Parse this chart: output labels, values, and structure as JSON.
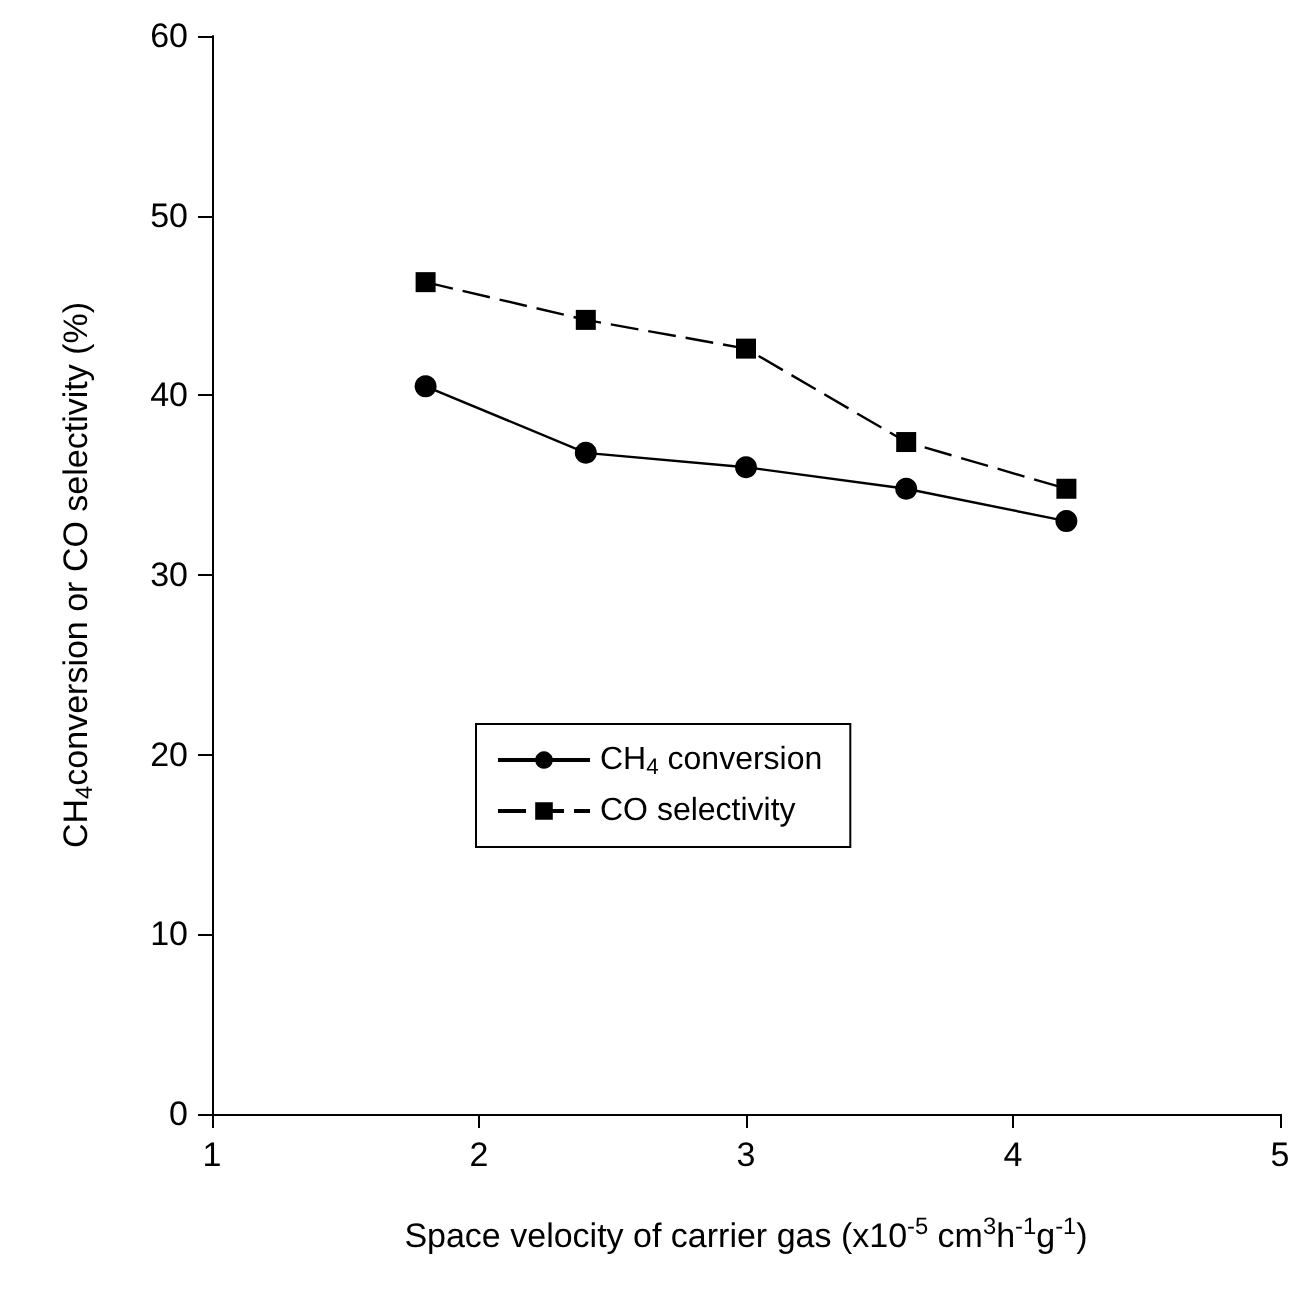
{
  "chart_data": {
    "type": "line",
    "xlabel": "Space velocity of carrier gas (x10$^{-5}$ cm$^{3}$h$^{-1}$g$^{-1}$)",
    "ylabel": "CH$_{4}$conversion or CO selectivity (%)",
    "x": [
      1.8,
      2.4,
      3.0,
      3.6,
      4.2
    ],
    "series": [
      {
        "name": "CH$_{4}$ conversion",
        "color": "#000000",
        "marker": "circle",
        "line_style": "solid",
        "values": [
          40.5,
          36.8,
          36.0,
          34.8,
          33.0
        ]
      },
      {
        "name": "CO selectivity",
        "color": "#000000",
        "marker": "square",
        "line_style": "dashed",
        "values": [
          46.3,
          44.2,
          42.6,
          37.4,
          34.8
        ]
      }
    ],
    "xlim": [
      1,
      5
    ],
    "xticks": [
      1,
      2,
      3,
      4,
      5
    ],
    "ylim": [
      0,
      60
    ],
    "yticks": [
      0,
      10,
      20,
      30,
      40,
      50,
      60
    ],
    "grid": false,
    "legend": "center"
  }
}
